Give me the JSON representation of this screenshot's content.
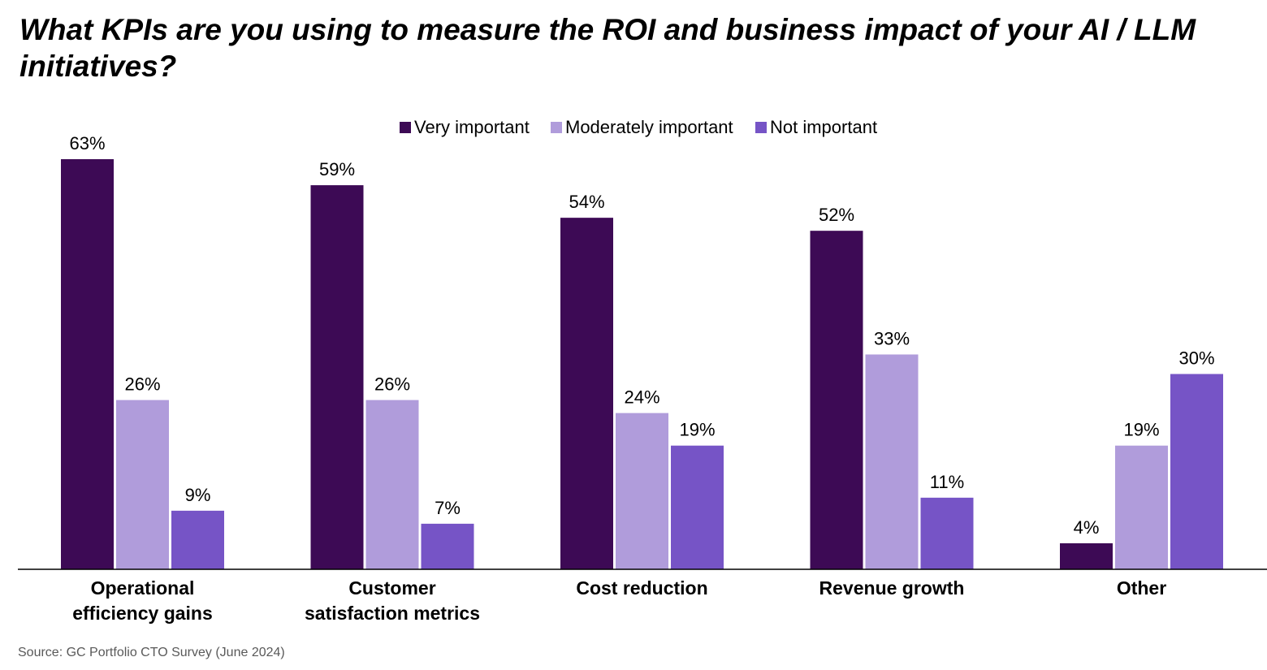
{
  "title": "What KPIs are you using to measure the ROI and business impact of your AI / LLM initiatives?",
  "source": "Source: GC Portfolio CTO Survey (June 2024)",
  "colors": {
    "very_important": "#3d0a55",
    "moderately_important": "#b09cdb",
    "not_important": "#7654c6",
    "axis": "#000000"
  },
  "chart_data": {
    "type": "bar",
    "title": "What KPIs are you using to measure the ROI and business impact of your AI / LLM initiatives?",
    "xlabel": "",
    "ylabel": "",
    "ylim": [
      0,
      63
    ],
    "grid": false,
    "legend_position": "top",
    "value_suffix": "%",
    "categories": [
      [
        "Operational",
        "efficiency gains"
      ],
      [
        "Customer",
        "satisfaction metrics"
      ],
      [
        "Cost reduction"
      ],
      [
        "Revenue growth"
      ],
      [
        "Other"
      ]
    ],
    "series": [
      {
        "name": "Very important",
        "color": "#3d0a55",
        "values": [
          63,
          59,
          54,
          52,
          4
        ]
      },
      {
        "name": "Moderately important",
        "color": "#b09cdb",
        "values": [
          26,
          26,
          24,
          33,
          19
        ]
      },
      {
        "name": "Not important",
        "color": "#7654c6",
        "values": [
          9,
          7,
          19,
          11,
          30
        ]
      }
    ]
  }
}
